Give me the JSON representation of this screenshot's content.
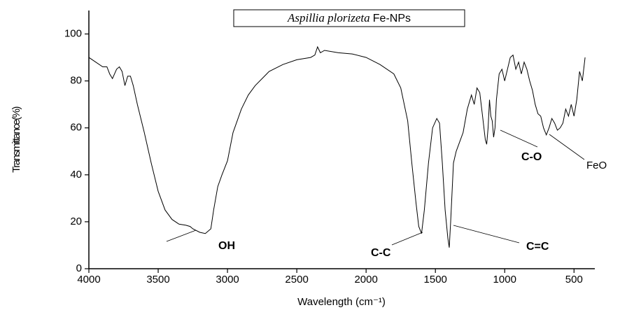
{
  "chart_data": {
    "type": "line",
    "title_italic": "Aspillia plorizeta",
    "title_suffix": "Fe-NPs",
    "x_label": "Wavelength (cm⁻¹)",
    "y_label": "Transmittance(%)",
    "xlim": [
      4000,
      350
    ],
    "ylim": [
      0,
      110
    ],
    "xticks": [
      4000,
      3500,
      3000,
      2500,
      2000,
      1500,
      1000,
      500
    ],
    "yticks": [
      0,
      20,
      40,
      60,
      80,
      100
    ],
    "annotations": [
      "OH",
      "C-C",
      "C=C",
      "C-O",
      "FeO"
    ],
    "series": [
      {
        "color": "#000000",
        "x": [
          4000,
          3950,
          3900,
          3870,
          3850,
          3830,
          3800,
          3780,
          3760,
          3740,
          3720,
          3700,
          3680,
          3650,
          3600,
          3550,
          3500,
          3450,
          3400,
          3350,
          3300,
          3270,
          3250,
          3200,
          3160,
          3120,
          3100,
          3070,
          3040,
          3000,
          2960,
          2900,
          2850,
          2800,
          2700,
          2600,
          2500,
          2400,
          2370,
          2350,
          2330,
          2300,
          2200,
          2100,
          2000,
          1900,
          1800,
          1750,
          1700,
          1670,
          1640,
          1620,
          1600,
          1580,
          1550,
          1520,
          1490,
          1470,
          1450,
          1430,
          1410,
          1400,
          1390,
          1370,
          1350,
          1300,
          1270,
          1240,
          1220,
          1200,
          1180,
          1160,
          1140,
          1130,
          1120,
          1110,
          1100,
          1090,
          1080,
          1070,
          1060,
          1040,
          1020,
          1000,
          980,
          960,
          940,
          920,
          900,
          880,
          860,
          840,
          820,
          800,
          780,
          760,
          740,
          720,
          700,
          680,
          660,
          640,
          620,
          600,
          580,
          560,
          540,
          520,
          500,
          480,
          460,
          440,
          420
        ],
        "values": [
          90,
          88,
          86,
          86,
          83,
          81,
          85,
          86,
          84,
          78,
          82,
          82,
          78,
          70,
          58,
          45,
          33,
          25,
          21,
          19,
          18.5,
          18,
          17,
          15.5,
          15,
          17,
          25,
          35,
          40,
          46,
          58,
          68,
          74,
          78,
          84,
          87,
          89,
          90,
          91,
          94.5,
          92,
          93,
          92,
          91.5,
          90,
          87,
          83,
          77,
          63,
          45,
          28,
          18,
          15,
          25,
          45,
          60,
          64,
          62,
          45,
          25,
          13,
          9,
          20,
          45,
          50,
          58,
          68,
          74,
          70,
          77,
          75,
          65,
          55,
          53,
          60,
          72,
          65,
          63,
          56,
          60,
          72,
          83,
          85,
          80,
          85,
          90,
          91,
          85,
          88,
          83,
          88,
          85,
          80,
          76,
          70,
          66,
          65,
          60,
          57,
          60,
          64,
          62,
          59,
          60,
          62,
          68,
          65,
          70,
          65,
          72,
          84,
          80,
          90
        ]
      }
    ]
  }
}
